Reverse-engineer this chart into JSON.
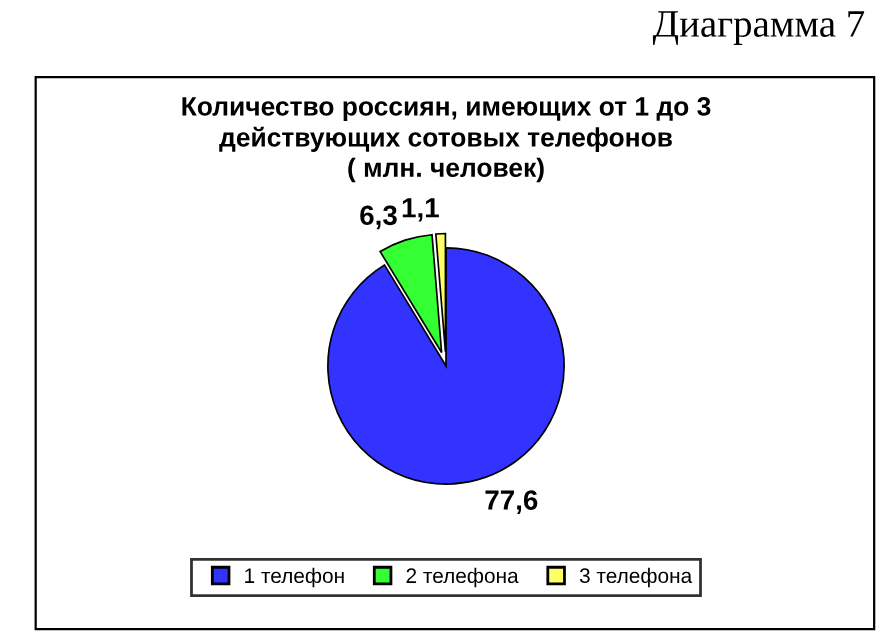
{
  "chart_data": {
    "type": "pie",
    "title": "Количество россиян, имеющих от 1 до 3\nдействующих сотовых телефонов\n( млн. человек)",
    "categories": [
      "1 телефон",
      "2 телефона",
      "3 телефона"
    ],
    "values": [
      77.6,
      6.3,
      1.1
    ],
    "value_labels": [
      "77,6",
      "6,3",
      "1,1"
    ],
    "colors": [
      "#3333ff",
      "#33ff33",
      "#ffff66"
    ],
    "legend": "bottom",
    "annotations": [
      "Диаграмма 7"
    ]
  }
}
